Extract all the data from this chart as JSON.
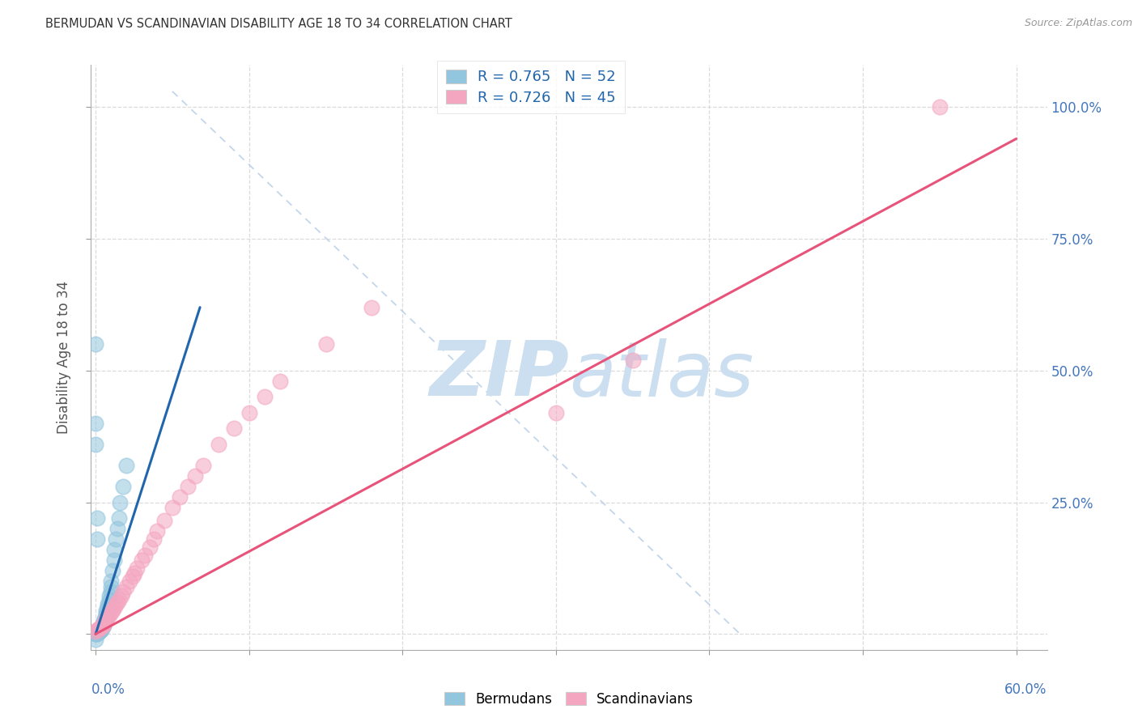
{
  "title": "BERMUDAN VS SCANDINAVIAN DISABILITY AGE 18 TO 34 CORRELATION CHART",
  "source": "Source: ZipAtlas.com",
  "ylabel": "Disability Age 18 to 34",
  "legend_bermudans": "Bermudans",
  "legend_scandinavians": "Scandinavians",
  "R_bermudans": 0.765,
  "N_bermudans": 52,
  "R_scandinavians": 0.726,
  "N_scandinavians": 45,
  "color_blue": "#92c5de",
  "color_pink": "#f4a6c0",
  "color_blue_line": "#2166ac",
  "color_pink_line": "#e8537a",
  "color_dashed": "#b8cfe8",
  "watermark_color": "#ccdff0",
  "xlim": [
    -0.003,
    0.62
  ],
  "ylim": [
    -0.03,
    1.08
  ],
  "x_ticks": [
    0.0,
    0.1,
    0.2,
    0.3,
    0.4,
    0.5,
    0.6
  ],
  "y_ticks": [
    0.0,
    0.25,
    0.5,
    0.75,
    1.0
  ],
  "y_tick_labels": [
    "",
    "25.0%",
    "50.0%",
    "75.0%",
    "100.0%"
  ],
  "blue_line_x": [
    0.0,
    0.068
  ],
  "blue_line_y": [
    0.0,
    0.62
  ],
  "pink_line_x": [
    0.0,
    0.6
  ],
  "pink_line_y": [
    0.0,
    0.94
  ],
  "dash_line_x": [
    0.05,
    0.42
  ],
  "dash_line_y": [
    1.03,
    0.0
  ],
  "bermudans_x": [
    0.0,
    0.0,
    0.001,
    0.001,
    0.001,
    0.002,
    0.002,
    0.002,
    0.002,
    0.003,
    0.003,
    0.003,
    0.003,
    0.003,
    0.004,
    0.004,
    0.004,
    0.004,
    0.005,
    0.005,
    0.005,
    0.005,
    0.005,
    0.006,
    0.006,
    0.006,
    0.007,
    0.007,
    0.007,
    0.008,
    0.008,
    0.008,
    0.009,
    0.009,
    0.01,
    0.01,
    0.01,
    0.011,
    0.012,
    0.012,
    0.013,
    0.014,
    0.015,
    0.016,
    0.018,
    0.02,
    0.0,
    0.0,
    0.0,
    0.001,
    0.001,
    0.0
  ],
  "bermudans_y": [
    0.0,
    0.001,
    0.001,
    0.002,
    0.003,
    0.003,
    0.004,
    0.005,
    0.006,
    0.006,
    0.007,
    0.008,
    0.009,
    0.01,
    0.01,
    0.012,
    0.014,
    0.016,
    0.016,
    0.018,
    0.02,
    0.022,
    0.025,
    0.025,
    0.028,
    0.032,
    0.035,
    0.04,
    0.045,
    0.048,
    0.052,
    0.058,
    0.065,
    0.072,
    0.08,
    0.09,
    0.1,
    0.12,
    0.14,
    0.16,
    0.18,
    0.2,
    0.22,
    0.25,
    0.28,
    0.32,
    0.36,
    0.4,
    0.55,
    0.18,
    0.22,
    -0.01
  ],
  "scandinavians_x": [
    0.0,
    0.001,
    0.002,
    0.003,
    0.004,
    0.005,
    0.005,
    0.006,
    0.007,
    0.008,
    0.009,
    0.01,
    0.011,
    0.012,
    0.013,
    0.014,
    0.015,
    0.017,
    0.018,
    0.02,
    0.022,
    0.024,
    0.025,
    0.027,
    0.03,
    0.032,
    0.035,
    0.038,
    0.04,
    0.045,
    0.05,
    0.055,
    0.06,
    0.065,
    0.07,
    0.08,
    0.09,
    0.1,
    0.11,
    0.12,
    0.15,
    0.18,
    0.3,
    0.55,
    0.35
  ],
  "scandinavians_y": [
    0.005,
    0.008,
    0.01,
    0.012,
    0.015,
    0.018,
    0.02,
    0.025,
    0.028,
    0.032,
    0.036,
    0.04,
    0.045,
    0.05,
    0.055,
    0.06,
    0.065,
    0.072,
    0.08,
    0.09,
    0.1,
    0.11,
    0.115,
    0.125,
    0.14,
    0.15,
    0.165,
    0.18,
    0.195,
    0.215,
    0.24,
    0.26,
    0.28,
    0.3,
    0.32,
    0.36,
    0.39,
    0.42,
    0.45,
    0.48,
    0.55,
    0.62,
    0.42,
    1.0,
    0.52
  ]
}
